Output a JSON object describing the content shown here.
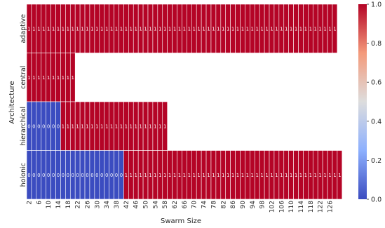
{
  "chart_data": {
    "type": "heatmap",
    "title": "",
    "xlabel": "Swarm Size",
    "ylabel": "Architecture",
    "rows": [
      {
        "name": "adaptive",
        "first_size": 2,
        "values": [
          1,
          1,
          1,
          1,
          1,
          1,
          1,
          1,
          1,
          1,
          1,
          1,
          1,
          1,
          1,
          1,
          1,
          1,
          1,
          1,
          1,
          1,
          1,
          1,
          1,
          1,
          1,
          1,
          1,
          1,
          1,
          1,
          1,
          1,
          1,
          1,
          1,
          1,
          1,
          1,
          1,
          1,
          1,
          1,
          1,
          1,
          1,
          1,
          1,
          1,
          1,
          1,
          1,
          1,
          1,
          1,
          1,
          1,
          1,
          1,
          1,
          1,
          1,
          1
        ]
      },
      {
        "name": "central",
        "first_size": 2,
        "values": [
          1,
          1,
          1,
          1,
          1,
          1,
          1,
          1,
          1,
          1
        ]
      },
      {
        "name": "hierarchical",
        "first_size": 2,
        "values": [
          0,
          0,
          0,
          0,
          0,
          0,
          0,
          1,
          1,
          1,
          1,
          1,
          1,
          1,
          1,
          1,
          1,
          1,
          1,
          1,
          1,
          1,
          1,
          1,
          1,
          1,
          1,
          1,
          1
        ]
      },
      {
        "name": "holonic",
        "first_size": 2,
        "values": [
          0,
          0,
          0,
          0,
          0,
          0,
          0,
          0,
          0,
          0,
          0,
          0,
          0,
          0,
          0,
          0,
          0,
          0,
          0,
          0,
          1,
          1,
          1,
          1,
          1,
          1,
          1,
          1,
          1,
          1,
          1,
          1,
          1,
          1,
          1,
          1,
          1,
          1,
          1,
          1,
          1,
          1,
          1,
          1,
          1,
          1,
          1,
          1,
          1,
          1,
          1,
          1,
          1,
          1,
          1,
          1,
          1,
          1,
          1,
          1,
          1,
          1,
          1,
          1,
          1
        ]
      }
    ],
    "x_ticks": [
      "2",
      "6",
      "10",
      "14",
      "18",
      "22",
      "26",
      "30",
      "34",
      "38",
      "42",
      "46",
      "50",
      "54",
      "58",
      "62",
      "66",
      "70",
      "74",
      "78",
      "82",
      "86",
      "90",
      "94",
      "98",
      "102",
      "106",
      "110",
      "114",
      "118",
      "122",
      "126"
    ],
    "colorbar": {
      "min": 0.0,
      "max": 1.0,
      "ticks": [
        "0.0",
        "0.2",
        "0.4",
        "0.6",
        "0.8",
        "1.0"
      ],
      "low_color": "#3b4cc0",
      "mid_color": "#dddddd",
      "high_color": "#b40426"
    },
    "colormap": "coolwarm",
    "annotated": true
  }
}
